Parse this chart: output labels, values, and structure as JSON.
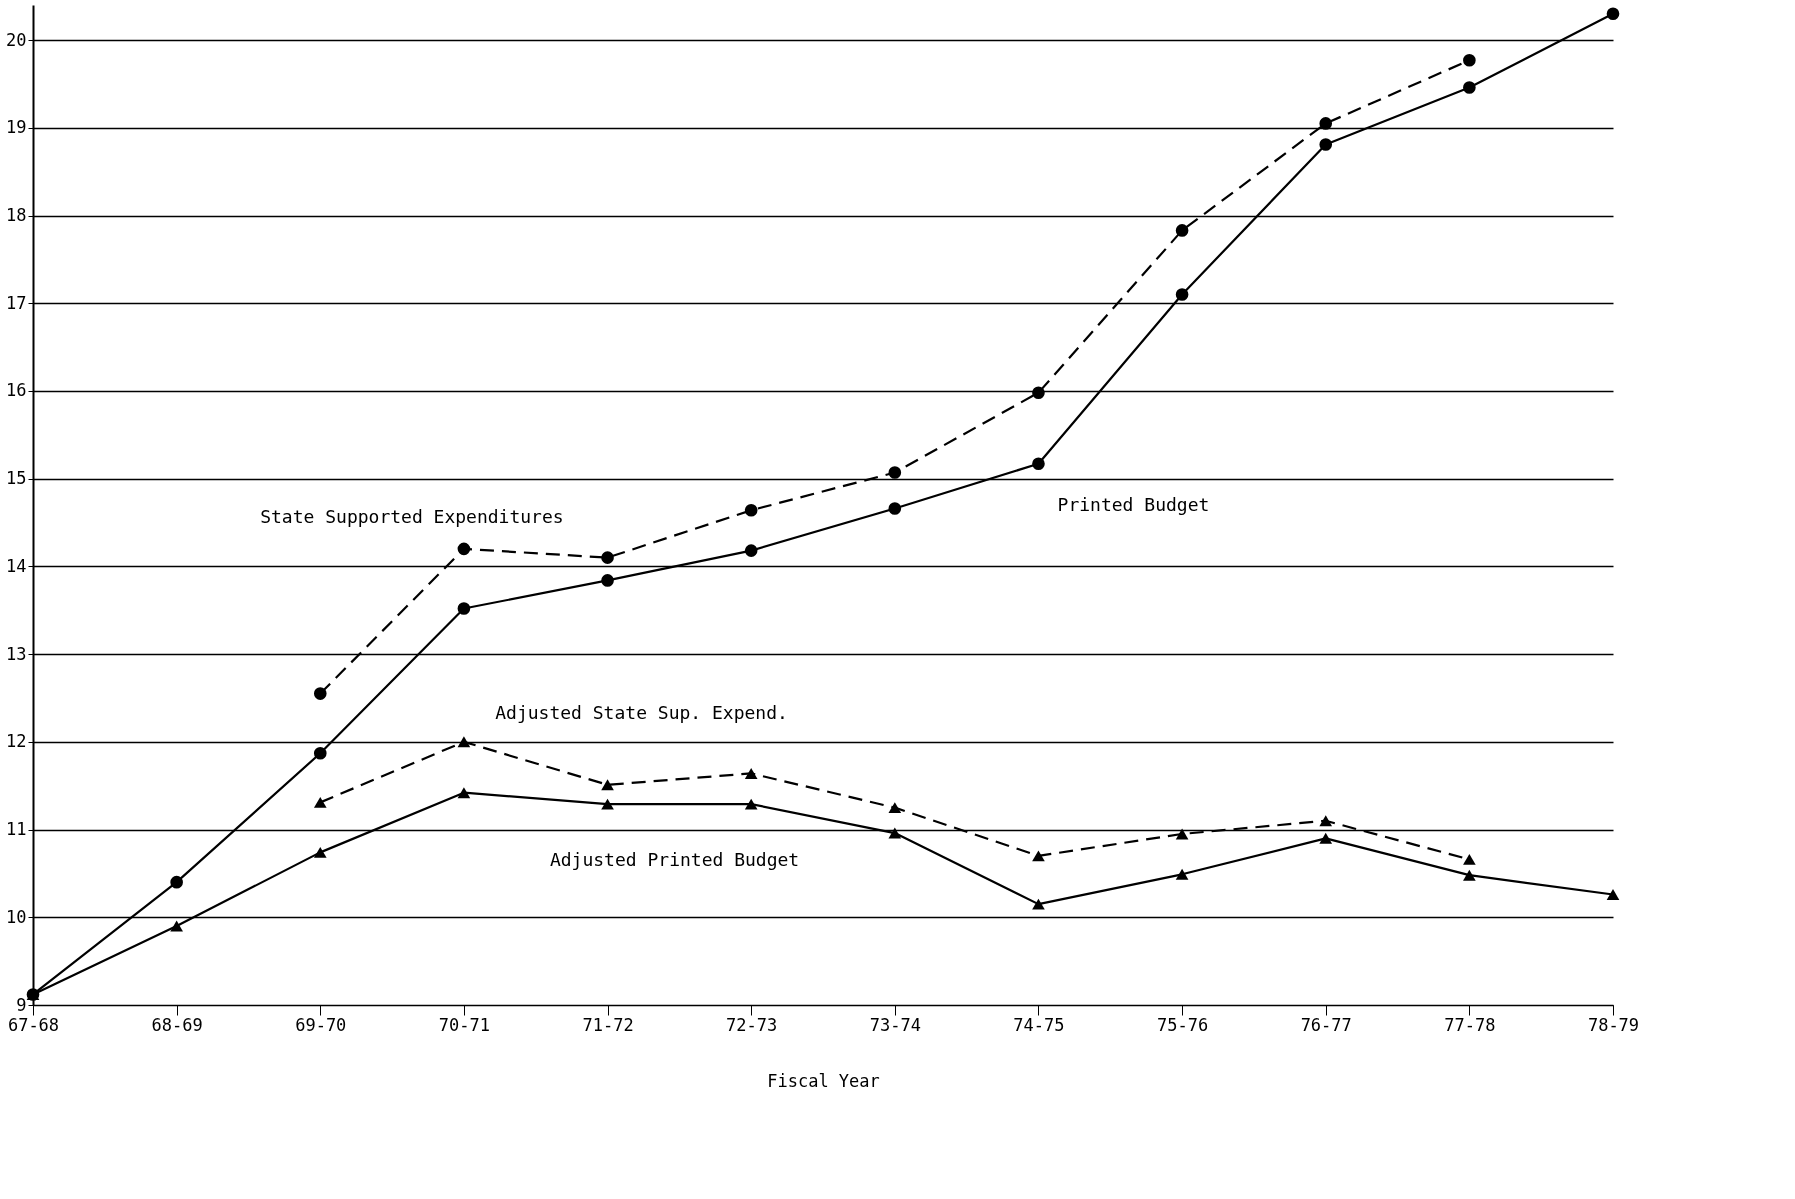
{
  "chart_data": {
    "type": "line",
    "xlabel": "Fiscal Year",
    "categories": [
      "67-68",
      "68-69",
      "69-70",
      "70-71",
      "71-72",
      "72-73",
      "73-74",
      "74-75",
      "75-76",
      "76-77",
      "77-78",
      "78-79"
    ],
    "series": [
      {
        "name": "Printed Budget",
        "color": "#000000",
        "marker": "circle",
        "line_style": "solid",
        "values": [
          9.12,
          10.4,
          11.87,
          13.52,
          13.84,
          14.18,
          14.66,
          15.17,
          17.1,
          18.81,
          19.46,
          20.3
        ]
      },
      {
        "name": "State Supported Expenditures",
        "color": "#000000",
        "marker": "circle",
        "line_style": "dashed",
        "values": [
          null,
          null,
          12.55,
          14.2,
          14.1,
          14.64,
          15.07,
          15.98,
          17.83,
          19.05,
          19.77,
          null
        ]
      },
      {
        "name": "Adjusted State Sup. Expend.",
        "color": "#000000",
        "marker": "triangle",
        "line_style": "dashed",
        "values": [
          null,
          null,
          11.31,
          12.0,
          11.51,
          11.64,
          11.25,
          10.7,
          10.95,
          11.1,
          10.66,
          null
        ]
      },
      {
        "name": "Adjusted Printed Budget",
        "color": "#000000",
        "marker": "triangle",
        "line_style": "solid",
        "values": [
          9.12,
          9.9,
          10.74,
          11.42,
          11.29,
          11.29,
          10.96,
          10.15,
          10.49,
          10.9,
          10.48,
          10.26
        ]
      }
    ],
    "ylim": [
      9,
      20.4
    ],
    "yticks": [
      9,
      10,
      11,
      12,
      13,
      14,
      15,
      16,
      17,
      18,
      19,
      20
    ],
    "grid": "y"
  }
}
